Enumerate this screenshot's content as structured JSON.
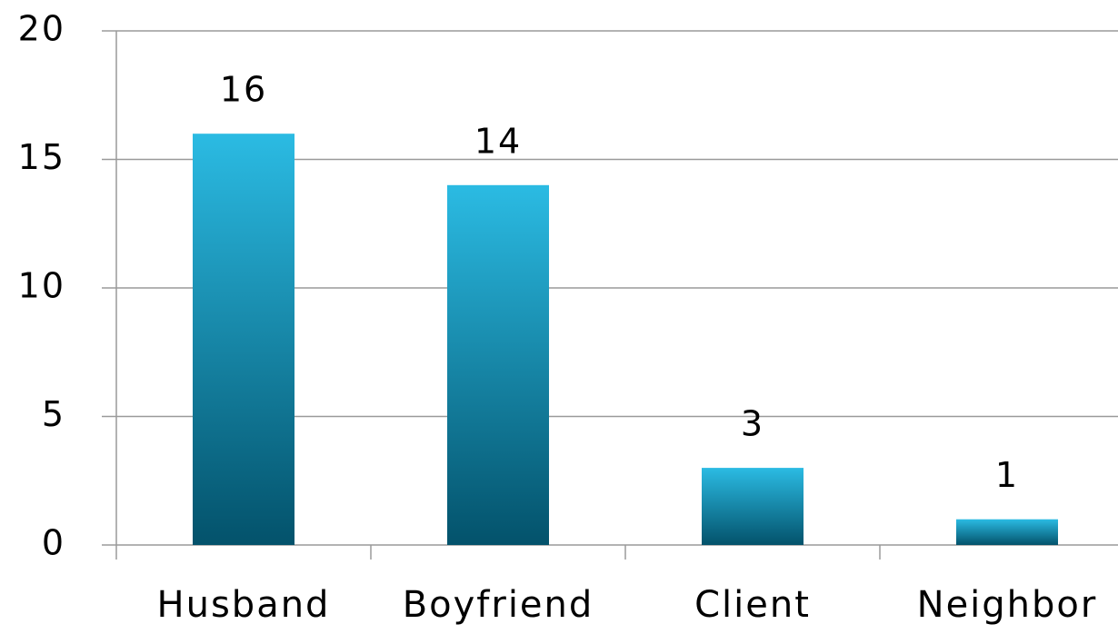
{
  "chart_data": {
    "type": "bar",
    "categories": [
      "Husband",
      "Boyfriend",
      "Client",
      "Neighbor"
    ],
    "values": [
      16,
      14,
      3,
      1
    ],
    "color": [
      "#2bbbe3",
      "#03526b"
    ],
    "ylim": [
      0,
      20
    ],
    "yticks": [
      0,
      5,
      10,
      15,
      20
    ],
    "grid": true
  }
}
